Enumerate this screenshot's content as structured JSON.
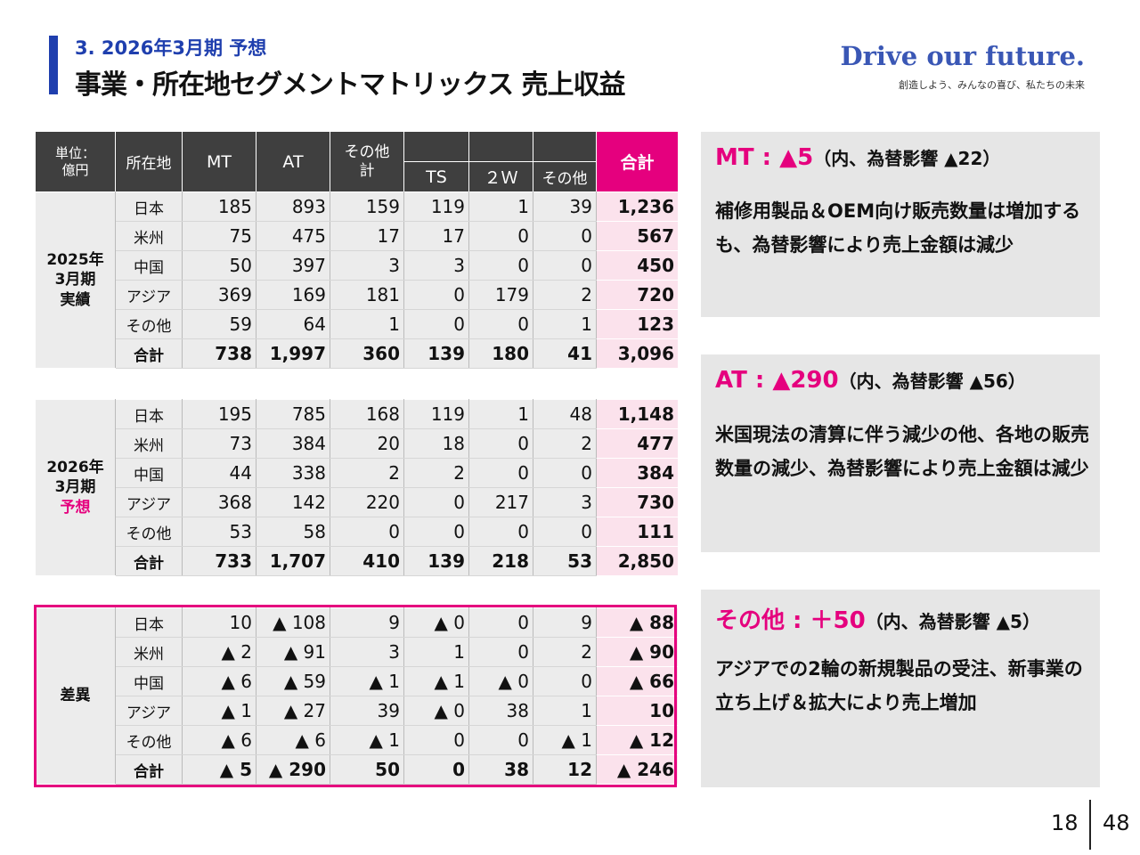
{
  "header": {
    "subtitle": "3.  2026年3月期 予想",
    "title": "事業・所在地セグメントマトリックス 売上収益",
    "brand": "Drive our future.",
    "tagline": "創造しよう、みんなの喜び、私たちの未来"
  },
  "table": {
    "unit": "単位：億円",
    "unit_line1": "単位：",
    "unit_line2": "億円",
    "col_region": "所在地",
    "col_mt": "MT",
    "col_at": "AT",
    "col_other_total_1": "その他",
    "col_other_total_2": "計",
    "col_ts": "TS",
    "col_2w": "２Ｗ",
    "col_other": "その他",
    "col_total": "合計",
    "blocks": [
      {
        "period_lines": [
          "2025年",
          "3月期",
          "実績"
        ],
        "rows": [
          {
            "region": "日本",
            "mt": "185",
            "at": "893",
            "oth": "159",
            "ts": "119",
            "w2": "1",
            "other": "39",
            "total": "1,236"
          },
          {
            "region": "米州",
            "mt": "75",
            "at": "475",
            "oth": "17",
            "ts": "17",
            "w2": "0",
            "other": "0",
            "total": "567"
          },
          {
            "region": "中国",
            "mt": "50",
            "at": "397",
            "oth": "3",
            "ts": "3",
            "w2": "0",
            "other": "0",
            "total": "450"
          },
          {
            "region": "アジア",
            "mt": "369",
            "at": "169",
            "oth": "181",
            "ts": "0",
            "w2": "179",
            "other": "2",
            "total": "720"
          },
          {
            "region": "その他",
            "mt": "59",
            "at": "64",
            "oth": "1",
            "ts": "0",
            "w2": "0",
            "other": "1",
            "total": "123"
          },
          {
            "region": "合計",
            "mt": "738",
            "at": "1,997",
            "oth": "360",
            "ts": "139",
            "w2": "180",
            "other": "41",
            "total": "3,096"
          }
        ]
      },
      {
        "period_lines": [
          "2026年",
          "3月期",
          "予想"
        ],
        "rows": [
          {
            "region": "日本",
            "mt": "195",
            "at": "785",
            "oth": "168",
            "ts": "119",
            "w2": "1",
            "other": "48",
            "total": "1,148"
          },
          {
            "region": "米州",
            "mt": "73",
            "at": "384",
            "oth": "20",
            "ts": "18",
            "w2": "0",
            "other": "2",
            "total": "477"
          },
          {
            "region": "中国",
            "mt": "44",
            "at": "338",
            "oth": "2",
            "ts": "2",
            "w2": "0",
            "other": "0",
            "total": "384"
          },
          {
            "region": "アジア",
            "mt": "368",
            "at": "142",
            "oth": "220",
            "ts": "0",
            "w2": "217",
            "other": "3",
            "total": "730"
          },
          {
            "region": "その他",
            "mt": "53",
            "at": "58",
            "oth": "0",
            "ts": "0",
            "w2": "0",
            "other": "0",
            "total": "111"
          },
          {
            "region": "合計",
            "mt": "733",
            "at": "1,707",
            "oth": "410",
            "ts": "139",
            "w2": "218",
            "other": "53",
            "total": "2,850"
          }
        ]
      },
      {
        "period_lines": [
          "差異"
        ],
        "rows": [
          {
            "region": "日本",
            "mt": "10",
            "at": "▲ 108",
            "oth": "9",
            "ts": "▲ 0",
            "w2": "0",
            "other": "9",
            "total": "▲ 88"
          },
          {
            "region": "米州",
            "mt": "▲ 2",
            "at": "▲ 91",
            "oth": "3",
            "ts": "1",
            "w2": "0",
            "other": "2",
            "total": "▲ 90"
          },
          {
            "region": "中国",
            "mt": "▲ 6",
            "at": "▲ 59",
            "oth": "▲ 1",
            "ts": "▲ 1",
            "w2": "▲ 0",
            "other": "0",
            "total": "▲ 66"
          },
          {
            "region": "アジア",
            "mt": "▲ 1",
            "at": "▲ 27",
            "oth": "39",
            "ts": "▲ 0",
            "w2": "38",
            "other": "1",
            "total": "10"
          },
          {
            "region": "その他",
            "mt": "▲ 6",
            "at": "▲ 6",
            "oth": "▲ 1",
            "ts": "0",
            "w2": "0",
            "other": "▲ 1",
            "total": "▲ 12"
          },
          {
            "region": "合計",
            "mt": "▲ 5",
            "at": "▲ 290",
            "oth": "50",
            "ts": "0",
            "w2": "38",
            "other": "12",
            "total": "▲ 246"
          }
        ]
      }
    ]
  },
  "panels": [
    {
      "head": "MT : ▲5",
      "note": "（内、為替影響 ▲22）",
      "body": "補修用製品＆OEM向け販売数量は増加するも、為替影響により売上金額は減少"
    },
    {
      "head": "AT : ▲290",
      "note": "（内、為替影響 ▲56）",
      "body": "米国現法の清算に伴う減少の他、各地の販売数量の減少、為替影響により売上金額は減少"
    },
    {
      "head": "その他 : ＋50",
      "note": "（内、為替影響 ▲5）",
      "body": "アジアでの2輪の新規製品の受注、新事業の立ち上げ＆拡大により売上増加"
    }
  ],
  "page": {
    "current": "18",
    "total": "48"
  },
  "colors": {
    "accent_blue": "#1f3fae",
    "accent_pink": "#e5007e",
    "header_dark": "#3f3f3f",
    "total_bg": "#fbe2ec",
    "panel_bg": "#e6e6e6"
  }
}
